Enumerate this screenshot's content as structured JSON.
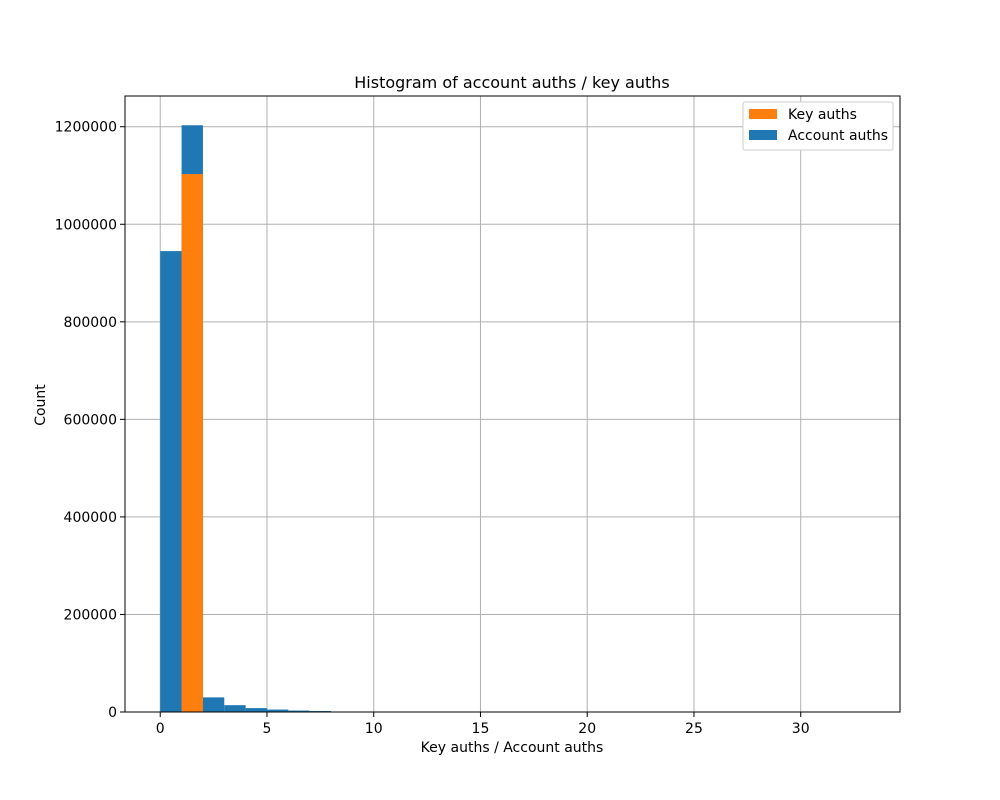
{
  "chart_data": {
    "type": "bar",
    "title": "Histogram of account auths / key auths",
    "xlabel": "Key auths / Account auths",
    "ylabel": "Count",
    "xlim": [
      -1.65,
      34.65
    ],
    "ylim": [
      0,
      1263000
    ],
    "xticks": [
      0,
      5,
      10,
      15,
      20,
      25,
      30
    ],
    "xtick_labels": [
      "0",
      "5",
      "10",
      "15",
      "20",
      "25",
      "30"
    ],
    "yticks": [
      0,
      200000,
      400000,
      600000,
      800000,
      1000000,
      1200000
    ],
    "ytick_labels": [
      "0",
      "200000",
      "400000",
      "600000",
      "800000",
      "1000000",
      "1200000"
    ],
    "grid": true,
    "legend_position": "top-right",
    "bin_width": 1,
    "series": [
      {
        "name": "Account auths",
        "color": "#1f77b4",
        "bins": [
          {
            "x0": 0,
            "value": 945000
          },
          {
            "x0": 1,
            "value": 1203000
          },
          {
            "x0": 2,
            "value": 30000
          },
          {
            "x0": 3,
            "value": 14000
          },
          {
            "x0": 4,
            "value": 8000
          },
          {
            "x0": 5,
            "value": 5000
          },
          {
            "x0": 6,
            "value": 3000
          },
          {
            "x0": 7,
            "value": 2000
          },
          {
            "x0": 8,
            "value": 1000
          },
          {
            "x0": 9,
            "value": 600
          },
          {
            "x0": 10,
            "value": 300
          }
        ]
      },
      {
        "name": "Key auths",
        "color": "#ff7f0e",
        "bins": [
          {
            "x0": 1,
            "value": 1103000
          }
        ]
      }
    ],
    "legend": [
      {
        "name": "Key auths",
        "color": "#ff7f0e"
      },
      {
        "name": "Account auths",
        "color": "#1f77b4"
      }
    ]
  }
}
